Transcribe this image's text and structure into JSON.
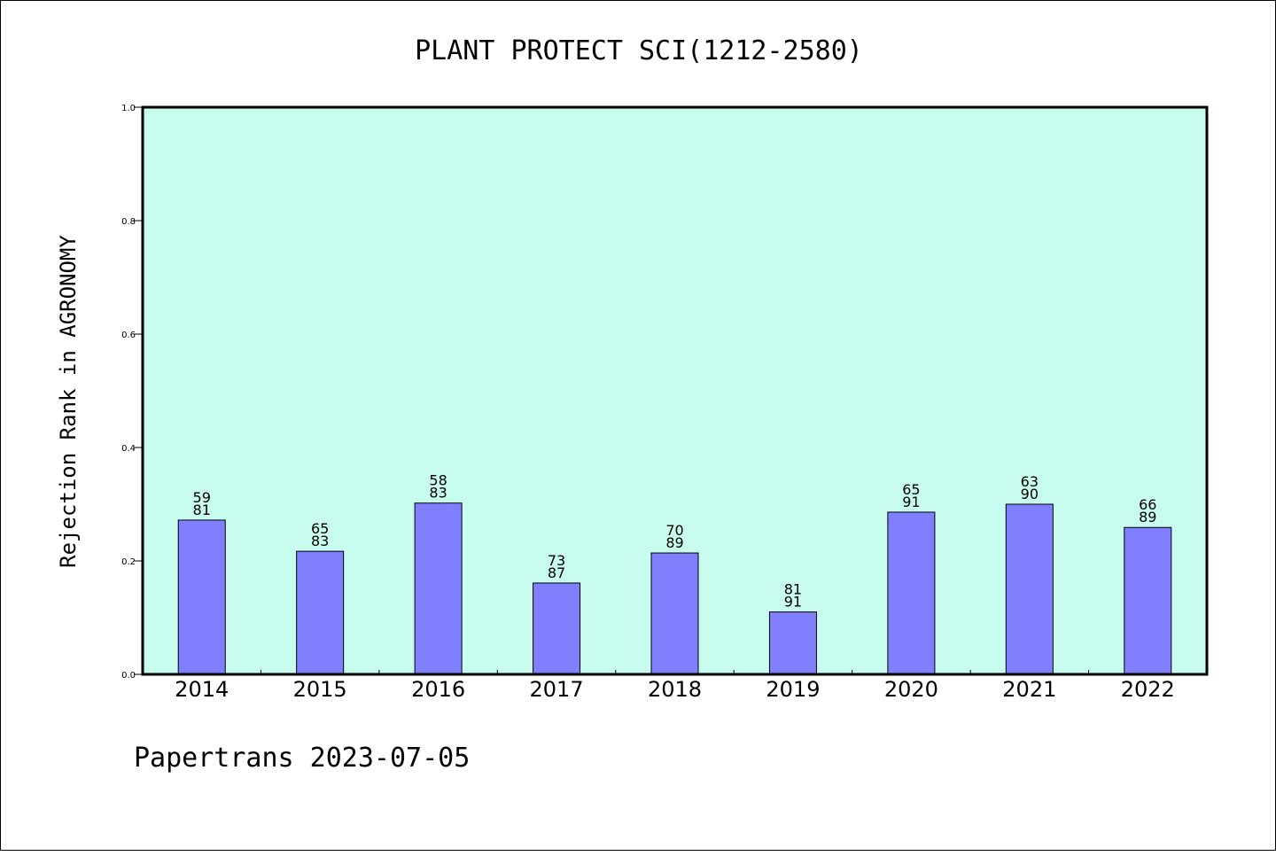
{
  "chart_data": {
    "type": "bar",
    "title": "PLANT PROTECT SCI(1212-2580)",
    "ylabel": "Rejection Rank in AGRONOMY",
    "xlabel": "",
    "categories": [
      "2014",
      "2015",
      "2016",
      "2017",
      "2018",
      "2019",
      "2020",
      "2021",
      "2022"
    ],
    "values": [
      0.272,
      0.217,
      0.302,
      0.161,
      0.214,
      0.11,
      0.286,
      0.3,
      0.259
    ],
    "labels_top": [
      "59",
      "65",
      "58",
      "73",
      "70",
      "81",
      "65",
      "63",
      "66"
    ],
    "labels_bottom": [
      "81",
      "83",
      "83",
      "87",
      "89",
      "91",
      "91",
      "90",
      "89"
    ],
    "ylim": [
      0,
      1.0
    ],
    "yticks": [
      "0.0",
      "0.2",
      "0.4",
      "0.6",
      "0.8",
      "1.0"
    ],
    "grid": false,
    "colors": {
      "bar": "#8080ff",
      "plot_bg": "#c8fcee",
      "border": "#000000"
    }
  },
  "footer": "Papertrans 2023-07-05"
}
